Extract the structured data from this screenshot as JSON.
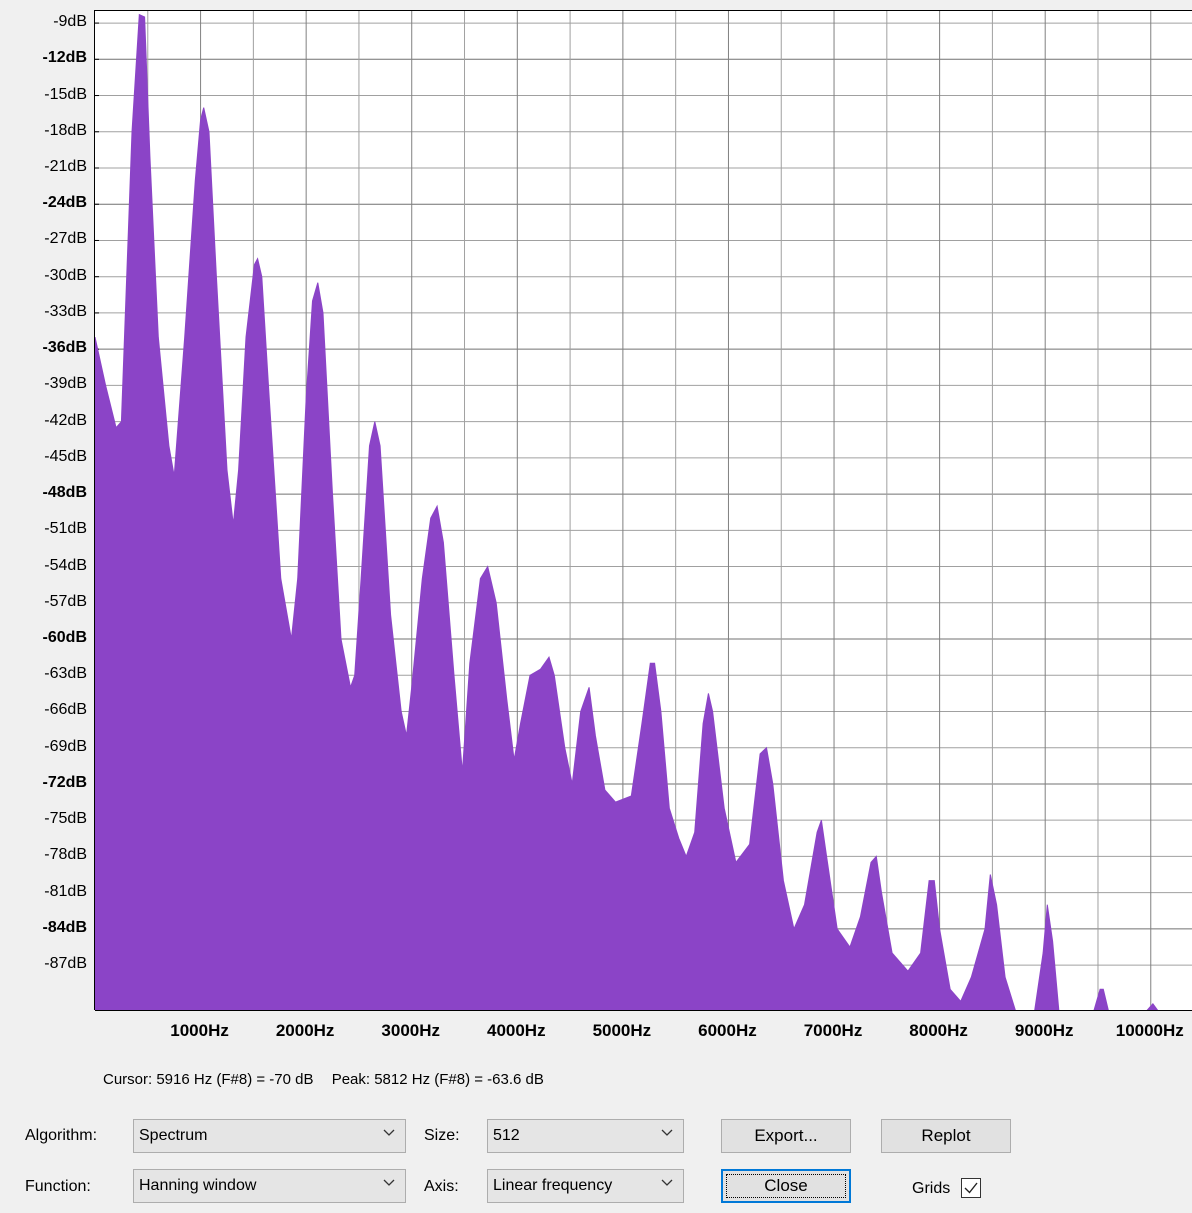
{
  "chart_data": {
    "type": "area",
    "color": "#8b44c7",
    "xlim": [
      0,
      10400
    ],
    "ylim": [
      -90.8,
      -8
    ],
    "x_ticks": [
      {
        "value": 1000,
        "label": "1000Hz"
      },
      {
        "value": 2000,
        "label": "2000Hz"
      },
      {
        "value": 3000,
        "label": "3000Hz"
      },
      {
        "value": 4000,
        "label": "4000Hz"
      },
      {
        "value": 5000,
        "label": "5000Hz"
      },
      {
        "value": 6000,
        "label": "6000Hz"
      },
      {
        "value": 7000,
        "label": "7000Hz"
      },
      {
        "value": 8000,
        "label": "8000Hz"
      },
      {
        "value": 9000,
        "label": "9000Hz"
      },
      {
        "value": 10000,
        "label": "10000Hz"
      }
    ],
    "y_ticks": [
      {
        "value": -9,
        "label": "-9dB",
        "bold": false
      },
      {
        "value": -12,
        "label": "-12dB",
        "bold": true
      },
      {
        "value": -15,
        "label": "-15dB",
        "bold": false
      },
      {
        "value": -18,
        "label": "-18dB",
        "bold": false
      },
      {
        "value": -21,
        "label": "-21dB",
        "bold": false
      },
      {
        "value": -24,
        "label": "-24dB",
        "bold": true
      },
      {
        "value": -27,
        "label": "-27dB",
        "bold": false
      },
      {
        "value": -30,
        "label": "-30dB",
        "bold": false
      },
      {
        "value": -33,
        "label": "-33dB",
        "bold": false
      },
      {
        "value": -36,
        "label": "-36dB",
        "bold": true
      },
      {
        "value": -39,
        "label": "-39dB",
        "bold": false
      },
      {
        "value": -42,
        "label": "-42dB",
        "bold": false
      },
      {
        "value": -45,
        "label": "-45dB",
        "bold": false
      },
      {
        "value": -48,
        "label": "-48dB",
        "bold": true
      },
      {
        "value": -51,
        "label": "-51dB",
        "bold": false
      },
      {
        "value": -54,
        "label": "-54dB",
        "bold": false
      },
      {
        "value": -57,
        "label": "-57dB",
        "bold": false
      },
      {
        "value": -60,
        "label": "-60dB",
        "bold": true
      },
      {
        "value": -63,
        "label": "-63dB",
        "bold": false
      },
      {
        "value": -66,
        "label": "-66dB",
        "bold": false
      },
      {
        "value": -69,
        "label": "-69dB",
        "bold": false
      },
      {
        "value": -72,
        "label": "-72dB",
        "bold": true
      },
      {
        "value": -75,
        "label": "-75dB",
        "bold": false
      },
      {
        "value": -78,
        "label": "-78dB",
        "bold": false
      },
      {
        "value": -81,
        "label": "-81dB",
        "bold": false
      },
      {
        "value": -84,
        "label": "-84dB",
        "bold": true
      },
      {
        "value": -87,
        "label": "-87dB",
        "bold": false
      }
    ],
    "grid": true,
    "points": [
      [
        0,
        -35
      ],
      [
        100,
        -39
      ],
      [
        200,
        -42.5
      ],
      [
        250,
        -42
      ],
      [
        350,
        -18
      ],
      [
        420,
        -8.3
      ],
      [
        470,
        -8.5
      ],
      [
        520,
        -20
      ],
      [
        600,
        -35
      ],
      [
        700,
        -44
      ],
      [
        750,
        -46.5
      ],
      [
        850,
        -35
      ],
      [
        950,
        -22
      ],
      [
        1000,
        -17
      ],
      [
        1030,
        -16
      ],
      [
        1080,
        -18
      ],
      [
        1150,
        -30
      ],
      [
        1250,
        -46
      ],
      [
        1310,
        -50.5
      ],
      [
        1360,
        -46
      ],
      [
        1430,
        -35
      ],
      [
        1510,
        -29
      ],
      [
        1540,
        -28.5
      ],
      [
        1580,
        -30
      ],
      [
        1650,
        -40
      ],
      [
        1760,
        -55
      ],
      [
        1860,
        -60
      ],
      [
        1920,
        -55
      ],
      [
        2000,
        -40
      ],
      [
        2060,
        -32
      ],
      [
        2110,
        -30.5
      ],
      [
        2160,
        -33
      ],
      [
        2250,
        -48
      ],
      [
        2330,
        -60
      ],
      [
        2420,
        -64
      ],
      [
        2460,
        -63
      ],
      [
        2520,
        -55
      ],
      [
        2600,
        -44
      ],
      [
        2650,
        -42
      ],
      [
        2700,
        -44
      ],
      [
        2800,
        -58
      ],
      [
        2900,
        -66
      ],
      [
        2950,
        -68
      ],
      [
        3000,
        -64
      ],
      [
        3100,
        -55
      ],
      [
        3180,
        -50
      ],
      [
        3240,
        -49
      ],
      [
        3300,
        -52
      ],
      [
        3400,
        -63
      ],
      [
        3480,
        -71
      ],
      [
        3550,
        -62
      ],
      [
        3650,
        -55
      ],
      [
        3720,
        -54
      ],
      [
        3800,
        -57
      ],
      [
        3900,
        -65
      ],
      [
        3970,
        -70
      ],
      [
        4030,
        -67
      ],
      [
        4120,
        -63
      ],
      [
        4220,
        -62.5
      ],
      [
        4300,
        -61.5
      ],
      [
        4350,
        -63
      ],
      [
        4450,
        -69
      ],
      [
        4520,
        -72
      ],
      [
        4600,
        -66
      ],
      [
        4680,
        -64
      ],
      [
        4740,
        -68
      ],
      [
        4830,
        -72.5
      ],
      [
        4930,
        -73.5
      ],
      [
        5080,
        -73
      ],
      [
        5180,
        -67
      ],
      [
        5260,
        -62
      ],
      [
        5300,
        -62
      ],
      [
        5360,
        -66
      ],
      [
        5440,
        -74
      ],
      [
        5530,
        -76.5
      ],
      [
        5600,
        -78
      ],
      [
        5680,
        -76
      ],
      [
        5760,
        -67
      ],
      [
        5810,
        -64.5
      ],
      [
        5850,
        -66
      ],
      [
        5960,
        -74
      ],
      [
        6070,
        -78.5
      ],
      [
        6200,
        -77
      ],
      [
        6300,
        -69.5
      ],
      [
        6360,
        -69
      ],
      [
        6420,
        -72
      ],
      [
        6520,
        -80
      ],
      [
        6620,
        -84
      ],
      [
        6720,
        -82
      ],
      [
        6840,
        -76
      ],
      [
        6880,
        -75
      ],
      [
        6930,
        -78
      ],
      [
        7030,
        -84
      ],
      [
        7150,
        -85.5
      ],
      [
        7250,
        -83
      ],
      [
        7350,
        -78.5
      ],
      [
        7400,
        -78
      ],
      [
        7450,
        -81
      ],
      [
        7550,
        -86
      ],
      [
        7700,
        -87.5
      ],
      [
        7820,
        -86
      ],
      [
        7900,
        -80
      ],
      [
        7950,
        -80
      ],
      [
        8000,
        -84
      ],
      [
        8100,
        -89
      ],
      [
        8200,
        -90
      ],
      [
        8300,
        -88
      ],
      [
        8430,
        -84
      ],
      [
        8480,
        -79.5
      ],
      [
        8540,
        -82
      ],
      [
        8620,
        -88
      ],
      [
        8720,
        -90.8
      ],
      [
        8900,
        -90.8
      ],
      [
        8980,
        -86
      ],
      [
        9020,
        -82
      ],
      [
        9070,
        -85
      ],
      [
        9130,
        -90.8
      ],
      [
        9460,
        -90.8
      ],
      [
        9520,
        -89
      ],
      [
        9550,
        -89
      ],
      [
        9600,
        -90.8
      ],
      [
        9960,
        -90.8
      ],
      [
        10020,
        -90.2
      ],
      [
        10070,
        -90.8
      ],
      [
        10400,
        -90.8
      ]
    ]
  },
  "status": {
    "cursor": "Cursor: 5916 Hz (F#8) = -70 dB",
    "peak": "Peak: 5812 Hz (F#8) = -63.6 dB"
  },
  "controls": {
    "algorithm_label": "Algorithm:",
    "algorithm_value": "Spectrum",
    "size_label": "Size:",
    "size_value": "512",
    "function_label": "Function:",
    "function_value": "Hanning window",
    "axis_label": "Axis:",
    "axis_value": "Linear frequency",
    "export_label": "Export...",
    "replot_label": "Replot",
    "close_label": "Close",
    "grids_label": "Grids",
    "grids_checked": true
  }
}
